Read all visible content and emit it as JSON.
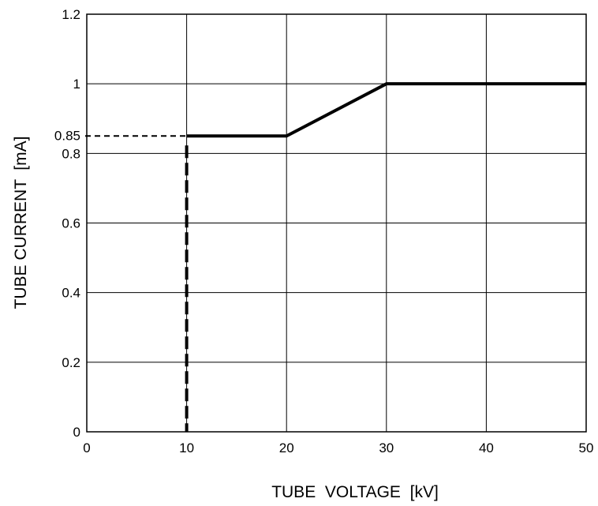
{
  "chart_data": {
    "type": "line",
    "xlabel": "TUBE  VOLTAGE  [kV]",
    "ylabel": "TUBE CURRENT  [mA]",
    "xlim": [
      0,
      50
    ],
    "ylim": [
      0,
      1.2
    ],
    "x_ticks": [
      "0",
      "10",
      "20",
      "30",
      "40",
      "50"
    ],
    "y_ticks": [
      "0",
      "0.2",
      "0.4",
      "0.6",
      "0.8",
      "1",
      "1.2"
    ],
    "grid": true,
    "series": [
      {
        "x": [
          10,
          20,
          30,
          50
        ],
        "y": [
          0.85,
          0.85,
          1,
          1
        ]
      }
    ],
    "annotations": [
      {
        "type": "reference-marker",
        "x": 10,
        "y": 0.85,
        "label": "0.85"
      }
    ]
  }
}
